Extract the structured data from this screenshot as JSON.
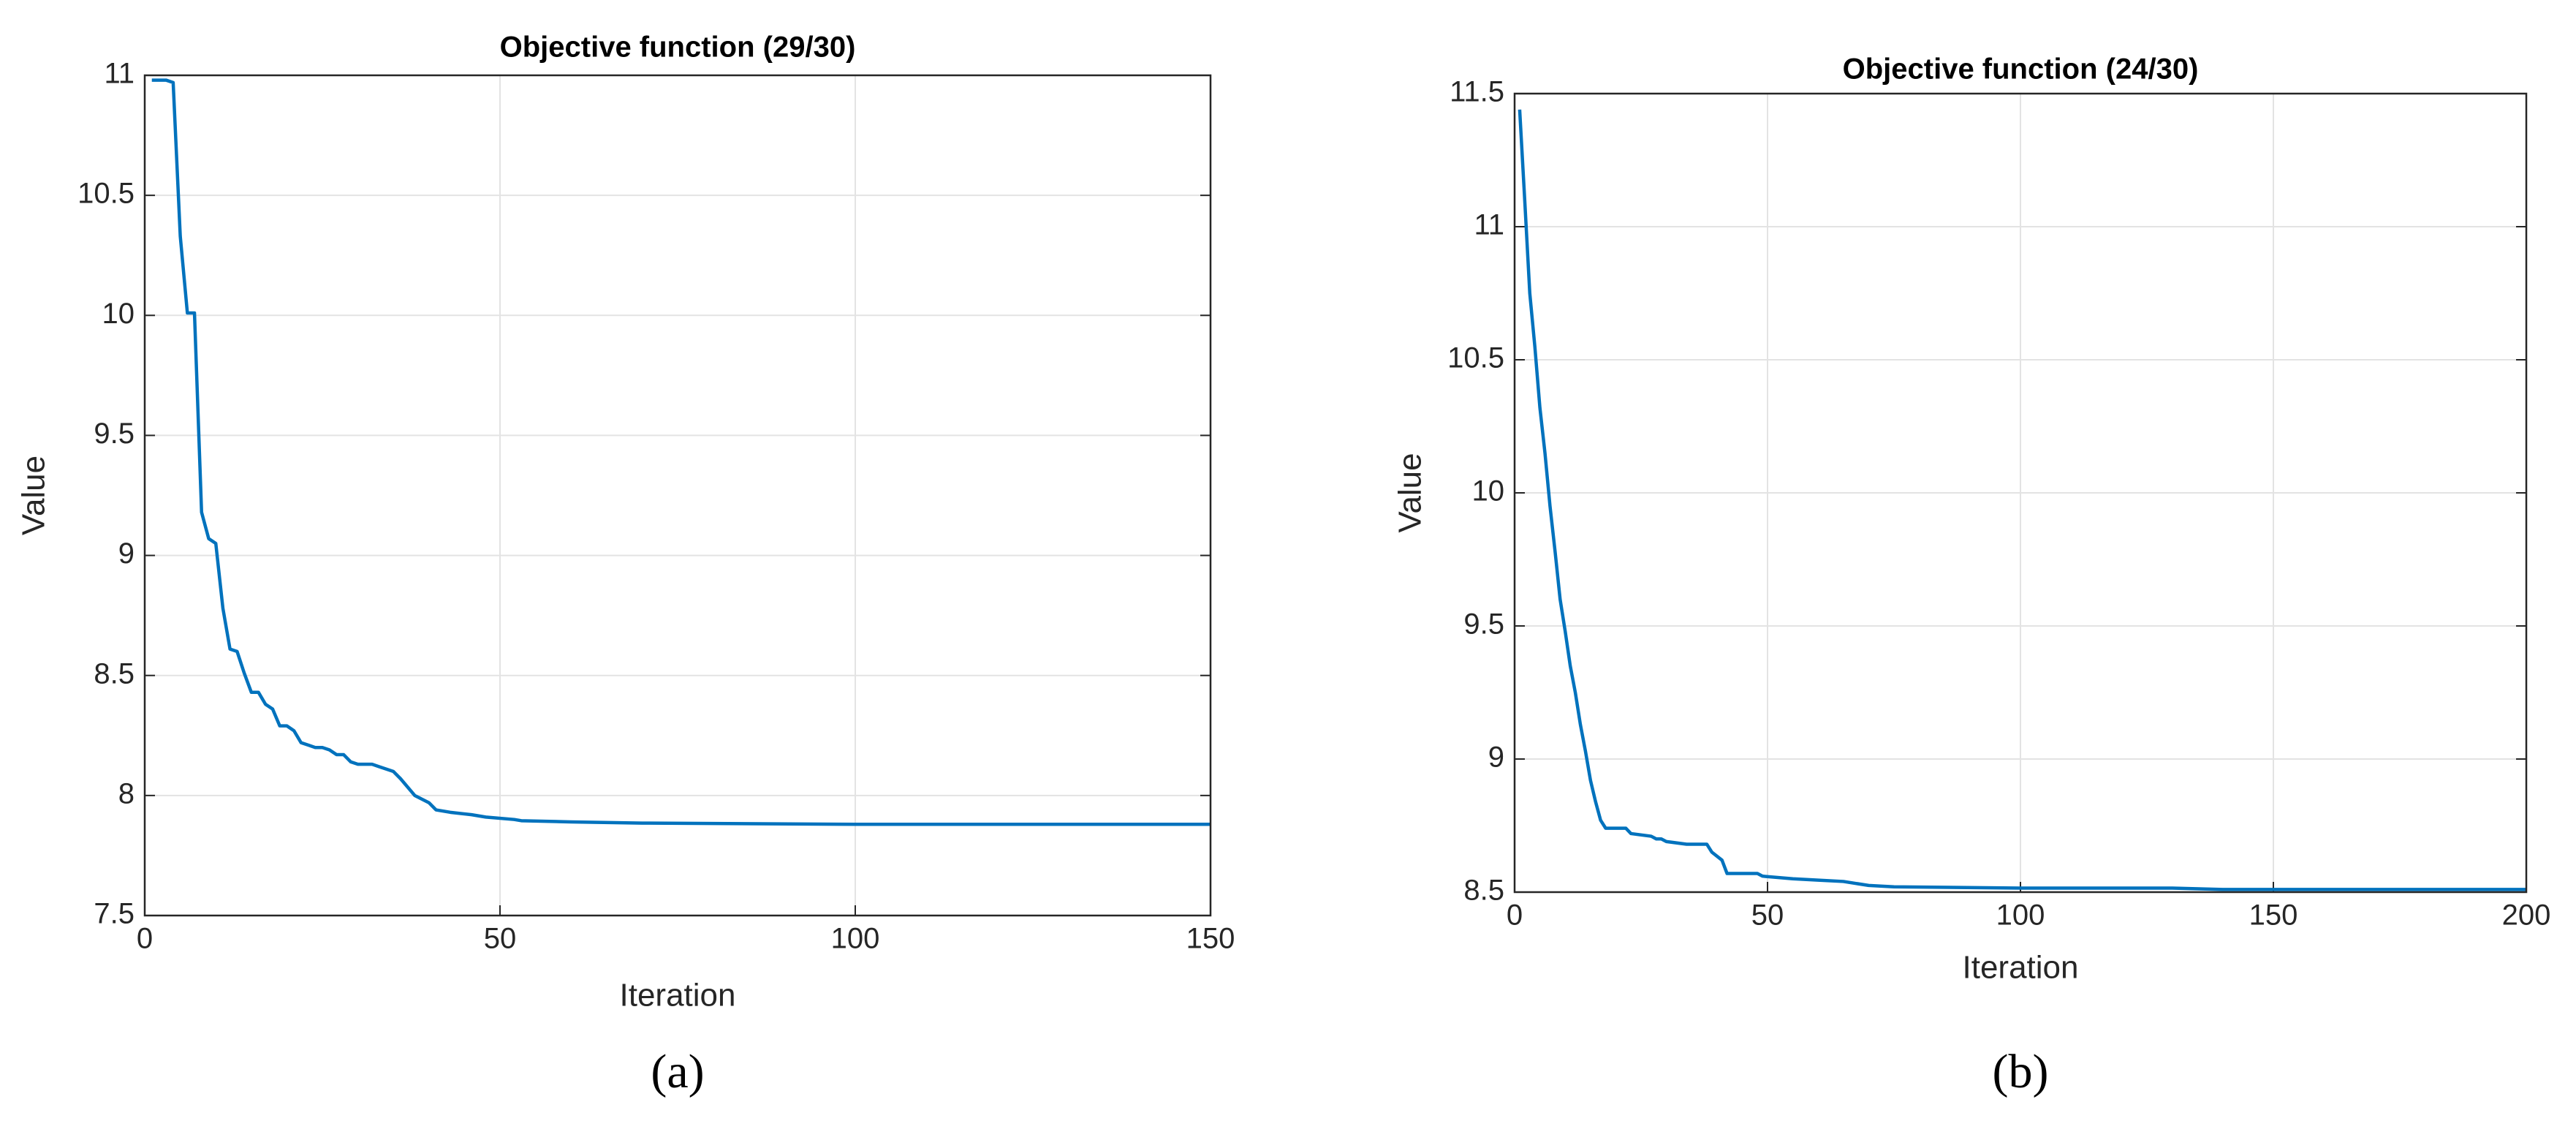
{
  "chart_data": [
    {
      "type": "line",
      "title": "Objective function (29/30)",
      "xlabel": "Iteration",
      "ylabel": "Value",
      "panel_label": "(a)",
      "x": [
        1,
        3,
        4,
        5,
        6,
        7,
        8,
        9,
        10,
        11,
        12,
        13,
        14,
        15,
        16,
        17,
        18,
        19,
        20,
        21,
        22,
        23,
        24,
        25,
        26,
        27,
        28,
        29,
        30,
        32,
        33,
        35,
        36,
        38,
        40,
        41,
        43,
        46,
        48,
        52,
        53,
        60,
        70,
        100,
        150
      ],
      "series": [
        {
          "name": "Value",
          "color": "#0072bd",
          "values": [
            10.98,
            10.98,
            10.97,
            10.33,
            10.01,
            10.01,
            9.18,
            9.07,
            9.05,
            8.78,
            8.61,
            8.6,
            8.51,
            8.43,
            8.43,
            8.38,
            8.36,
            8.29,
            8.29,
            8.27,
            8.22,
            8.21,
            8.2,
            8.2,
            8.19,
            8.17,
            8.17,
            8.14,
            8.13,
            8.13,
            8.12,
            8.1,
            8.07,
            8.0,
            7.97,
            7.94,
            7.93,
            7.92,
            7.91,
            7.9,
            7.895,
            7.89,
            7.885,
            7.88,
            7.88
          ]
        }
      ],
      "xlim": [
        0,
        150
      ],
      "ylim": [
        7.5,
        11
      ],
      "xticks": [
        0,
        50,
        100,
        150
      ],
      "yticks": [
        7.5,
        8,
        8.5,
        9,
        9.5,
        10,
        10.5,
        11
      ],
      "grid": true
    },
    {
      "type": "line",
      "title": "Objective function (24/30)",
      "xlabel": "Iteration",
      "ylabel": "Value",
      "panel_label": "(b)",
      "x": [
        1,
        2,
        3,
        4,
        5,
        6,
        7,
        8,
        9,
        10,
        11,
        12,
        13,
        14,
        15,
        16,
        17,
        18,
        22,
        23,
        27,
        28,
        29,
        30,
        34,
        38,
        39,
        41,
        42,
        48,
        49,
        55,
        60,
        65,
        70,
        75,
        100,
        130,
        140,
        200
      ],
      "series": [
        {
          "name": "Value",
          "color": "#0072bd",
          "values": [
            11.44,
            11.1,
            10.75,
            10.55,
            10.32,
            10.15,
            9.95,
            9.78,
            9.6,
            9.48,
            9.35,
            9.25,
            9.13,
            9.03,
            8.92,
            8.84,
            8.77,
            8.74,
            8.74,
            8.72,
            8.71,
            8.7,
            8.7,
            8.69,
            8.68,
            8.68,
            8.65,
            8.62,
            8.57,
            8.57,
            8.56,
            8.55,
            8.545,
            8.54,
            8.525,
            8.52,
            8.515,
            8.515,
            8.51,
            8.51
          ]
        }
      ],
      "xlim": [
        0,
        200
      ],
      "ylim": [
        8.5,
        11.5
      ],
      "xticks": [
        0,
        50,
        100,
        150,
        200
      ],
      "yticks": [
        8.5,
        9,
        9.5,
        10,
        10.5,
        11,
        11.5
      ],
      "grid": true
    }
  ]
}
